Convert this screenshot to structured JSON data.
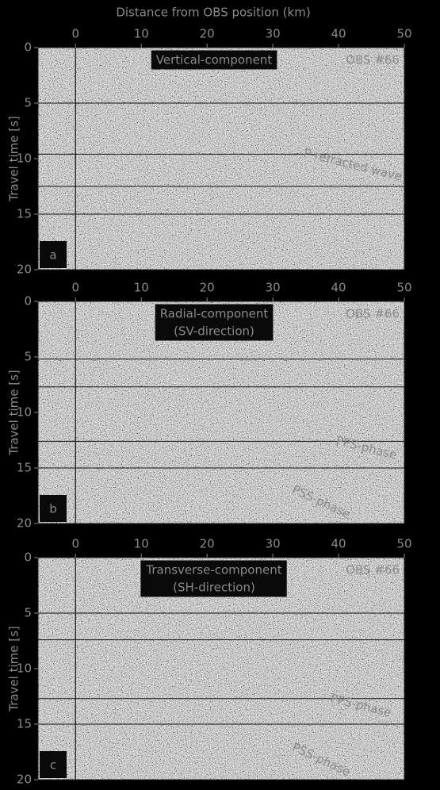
{
  "chart_data": [
    {
      "type": "seismic",
      "xlabel": "Distance from OBS position (km)",
      "ylabel": "Travel time [s]",
      "title": [
        "Vertical-component"
      ],
      "station": "OBS #66",
      "panel": "a",
      "xlim": [
        -5.7,
        50
      ],
      "ylim": [
        0,
        20
      ],
      "xticks": [
        0,
        10,
        20,
        30,
        40,
        50
      ],
      "yticks": [
        0,
        5,
        10,
        15,
        20
      ],
      "reference_lines": [
        5,
        9.6,
        12.5,
        15
      ],
      "zero_line": 0,
      "annotations": [
        "P-refracted wave"
      ]
    },
    {
      "type": "seismic",
      "ylabel": "Travel time [s]",
      "title": [
        "Radial-component",
        "(SV-direction)"
      ],
      "station": "OBS #66",
      "panel": "b",
      "xlim": [
        -5.7,
        50
      ],
      "ylim": [
        0,
        20
      ],
      "xticks": [
        0,
        10,
        20,
        30,
        40,
        50
      ],
      "yticks": [
        0,
        5,
        10,
        15,
        20
      ],
      "reference_lines": [
        5.2,
        7.7,
        12.6,
        15
      ],
      "zero_line": 0,
      "annotations": [
        "PPS-phase",
        "PSS-phase"
      ]
    },
    {
      "type": "seismic",
      "ylabel": "Travel time [s]",
      "title": [
        "Transverse-component",
        "(SH-direction)"
      ],
      "station": "OBS #66",
      "panel": "c",
      "xlim": [
        -5.7,
        50
      ],
      "ylim": [
        0,
        20
      ],
      "xticks": [
        0,
        10,
        20,
        30,
        40,
        50
      ],
      "yticks": [
        0,
        5,
        10,
        15,
        20
      ],
      "reference_lines": [
        5,
        7.4,
        12.7,
        15
      ],
      "zero_line": 0,
      "annotations": [
        "PPS-phase",
        "PSS-phase"
      ]
    }
  ]
}
